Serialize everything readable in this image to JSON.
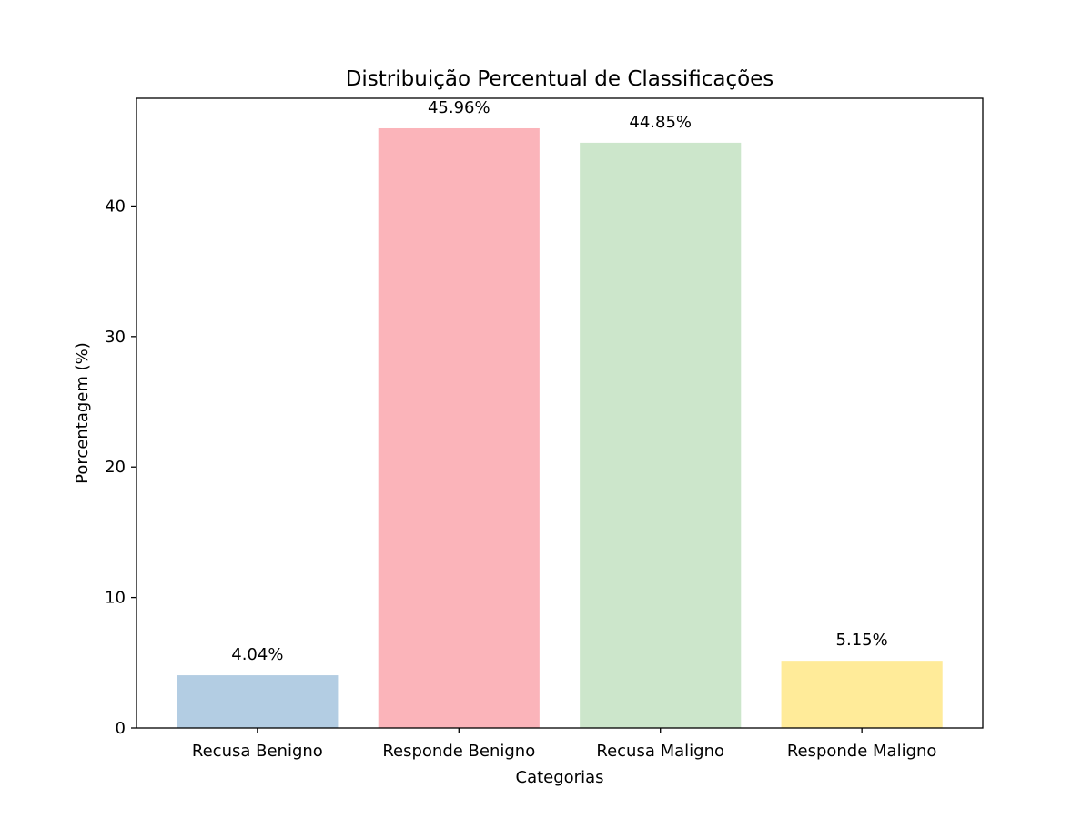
{
  "chart_data": {
    "type": "bar",
    "title": "Distribuição Percentual de Classificações",
    "xlabel": "Categorias",
    "ylabel": "Porcentagem (%)",
    "categories": [
      "Recusa Benigno",
      "Responde Benigno",
      "Recusa Maligno",
      "Responde Maligno"
    ],
    "values": [
      4.04,
      45.96,
      44.85,
      5.15
    ],
    "value_labels": [
      "4.04%",
      "45.96%",
      "44.85%",
      "5.15%"
    ],
    "colors": [
      "#b3cde3",
      "#fbb4ba",
      "#cce6cb",
      "#ffeb99"
    ],
    "yticks": [
      0,
      10,
      20,
      30,
      40
    ],
    "ytick_labels": [
      "0",
      "10",
      "20",
      "30",
      "40"
    ],
    "ylim": [
      0,
      48.26
    ],
    "grid": false,
    "legend": "none"
  }
}
